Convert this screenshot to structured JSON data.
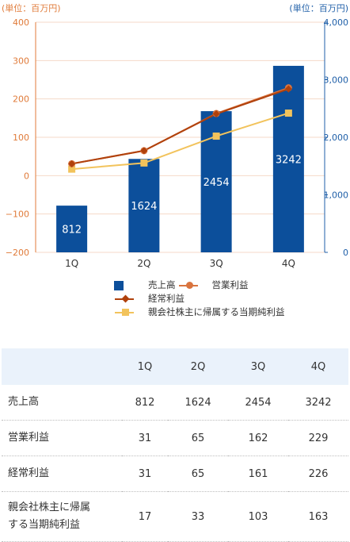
{
  "units": {
    "left": "(単位：百万円)",
    "right": "(単位：百万円)"
  },
  "colors": {
    "bar": "#0c4f9b",
    "operating": "#d9743f",
    "ordinary": "#b0410c",
    "net": "#f2c35c",
    "left_axis": "#e07b3a",
    "right_axis": "#1f5fa8",
    "grid": "#f4d9c8"
  },
  "chart_data": {
    "type": "bar",
    "categories": [
      "1Q",
      "2Q",
      "3Q",
      "4Q"
    ],
    "left_axis": {
      "ticks": [
        "400",
        "300",
        "200",
        "100",
        "0",
        "−100",
        "−200"
      ],
      "ylim": [
        -200,
        400
      ]
    },
    "right_axis": {
      "ticks": [
        "4,000",
        "3,000",
        "2,000",
        "1,000",
        "0"
      ],
      "ylim": [
        0,
        4000
      ]
    },
    "series": [
      {
        "name": "売上高",
        "type": "bar",
        "axis": "right",
        "values": [
          812,
          1624,
          2454,
          3242
        ]
      },
      {
        "name": "営業利益",
        "type": "line",
        "marker": "circle",
        "axis": "left",
        "values": [
          31,
          65,
          162,
          229
        ]
      },
      {
        "name": "経常利益",
        "type": "line",
        "marker": "diamond",
        "axis": "left",
        "values": [
          31,
          65,
          161,
          226
        ]
      },
      {
        "name": "親会社株主に帰属する当期純利益",
        "type": "line",
        "marker": "square",
        "axis": "left",
        "values": [
          17,
          33,
          103,
          163
        ]
      }
    ],
    "grid": true,
    "legend": "bottom"
  },
  "table": {
    "headers": [
      "",
      "1Q",
      "2Q",
      "3Q",
      "4Q"
    ],
    "rows": [
      {
        "label": "売上高",
        "values": [
          "812",
          "1624",
          "2454",
          "3242"
        ]
      },
      {
        "label": "営業利益",
        "values": [
          "31",
          "65",
          "162",
          "229"
        ]
      },
      {
        "label": "経常利益",
        "values": [
          "31",
          "65",
          "161",
          "226"
        ]
      },
      {
        "label_1": "親会社株主に帰属",
        "label_2": "する当期純利益",
        "values": [
          "17",
          "33",
          "103",
          "163"
        ]
      }
    ]
  }
}
